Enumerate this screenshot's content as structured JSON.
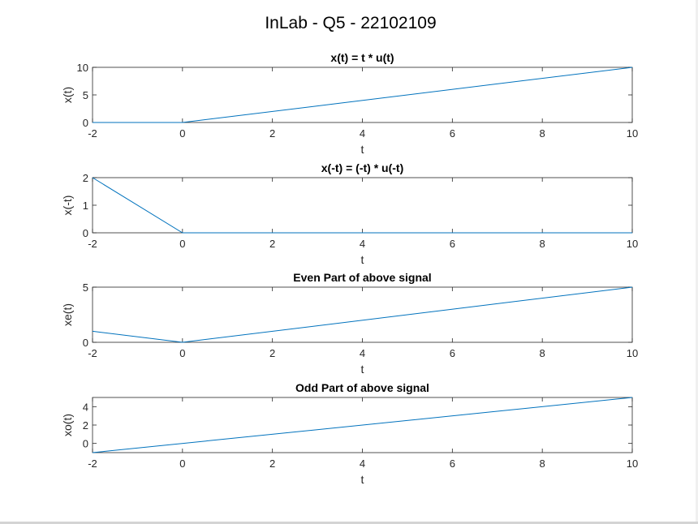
{
  "figure": {
    "title": "InLab - Q5 - 22102109"
  },
  "colors": {
    "line": "#0072BD",
    "axes": "#262626",
    "background": "#ffffff"
  },
  "chart_data": [
    {
      "type": "line",
      "title": "x(t) = t * u(t)",
      "xlabel": "t",
      "ylabel": "x(t)",
      "xlim": [
        -2,
        10
      ],
      "ylim": [
        0,
        10
      ],
      "xticks": [
        -2,
        0,
        2,
        4,
        6,
        8,
        10
      ],
      "yticks": [
        0,
        5,
        10
      ],
      "grid": false,
      "series": [
        {
          "x": [
            -2,
            0,
            10
          ],
          "y": [
            0,
            0,
            10
          ]
        }
      ]
    },
    {
      "type": "line",
      "title": "x(-t) = (-t) * u(-t)",
      "xlabel": "t",
      "ylabel": "x(-t)",
      "xlim": [
        -2,
        10
      ],
      "ylim": [
        0,
        2
      ],
      "xticks": [
        -2,
        0,
        2,
        4,
        6,
        8,
        10
      ],
      "yticks": [
        0,
        1,
        2
      ],
      "grid": false,
      "series": [
        {
          "x": [
            -2,
            0,
            10
          ],
          "y": [
            2,
            0,
            0
          ]
        }
      ]
    },
    {
      "type": "line",
      "title": "Even Part of above signal",
      "xlabel": "t",
      "ylabel": "xe(t)",
      "xlim": [
        -2,
        10
      ],
      "ylim": [
        0,
        5
      ],
      "xticks": [
        -2,
        0,
        2,
        4,
        6,
        8,
        10
      ],
      "yticks": [
        0,
        5
      ],
      "grid": false,
      "series": [
        {
          "x": [
            -2,
            0,
            10
          ],
          "y": [
            1,
            0,
            5
          ]
        }
      ]
    },
    {
      "type": "line",
      "title": "Odd Part of above signal",
      "xlabel": "t",
      "ylabel": "xo(t)",
      "xlim": [
        -2,
        10
      ],
      "ylim": [
        -1,
        5
      ],
      "xticks": [
        -2,
        0,
        2,
        4,
        6,
        8,
        10
      ],
      "yticks": [
        0,
        2,
        4
      ],
      "grid": false,
      "series": [
        {
          "x": [
            -2,
            10
          ],
          "y": [
            -1,
            5
          ]
        }
      ]
    }
  ]
}
